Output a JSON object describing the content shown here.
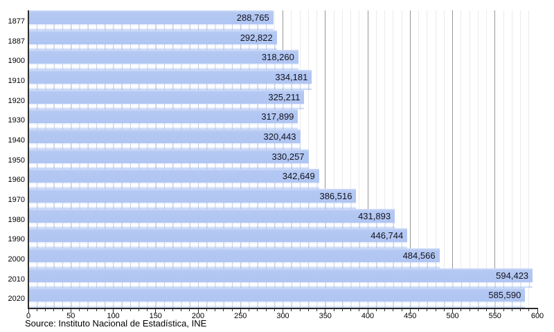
{
  "chart_data": {
    "type": "bar",
    "orientation": "horizontal",
    "title": "",
    "categories": [
      "1877",
      "1887",
      "1900",
      "1910",
      "1920",
      "1930",
      "1940",
      "1950",
      "1960",
      "1970",
      "1980",
      "1990",
      "2000",
      "2010",
      "2020"
    ],
    "values": [
      288765,
      292822,
      318260,
      334181,
      325211,
      317899,
      320443,
      330257,
      342649,
      386516,
      431893,
      446744,
      484566,
      594423,
      585590
    ],
    "value_labels": [
      "288,765",
      "292,822",
      "318,260",
      "334,181",
      "325,211",
      "317,899",
      "320,443",
      "330,257",
      "342,649",
      "386,516",
      "431,893",
      "446,744",
      "484,566",
      "594,423",
      "585,590"
    ],
    "xlabel": "",
    "ylabel": "",
    "xlim": [
      0,
      600
    ],
    "x_axis_scale": "thousands",
    "x_tick_labels": [
      "0",
      "50",
      "100",
      "150",
      "200",
      "250",
      "300",
      "350",
      "400",
      "450",
      "500",
      "550",
      "600"
    ],
    "x_tick_interval": 50,
    "x_minor_tick_interval": 10,
    "grid": "vertical gridlines: light minor every 10, dark major every 50",
    "legend": "none",
    "source": "Source: Instituto Nacional de Estadística, INE",
    "colors": {
      "bar": "#b4c8f3",
      "bar_value_text": "#13131c",
      "grid_minor": "#eaeaea",
      "grid_major": "#979797",
      "axis": "#2b2b2b",
      "tick_text": "#000000"
    }
  }
}
